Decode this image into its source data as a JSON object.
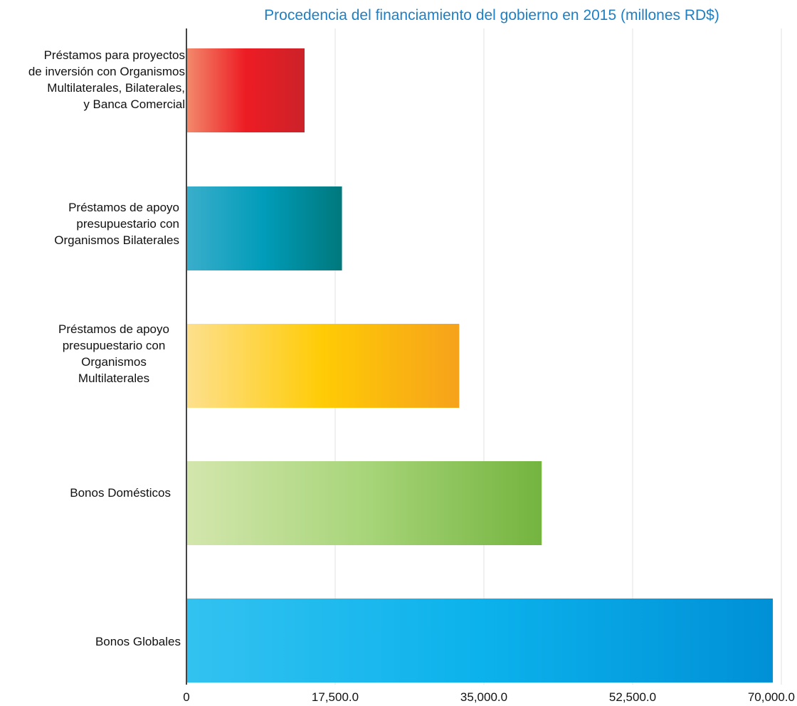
{
  "chart_data": {
    "type": "bar",
    "orientation": "horizontal",
    "title": "Procedencia del financiamiento del gobierno en 2015 (millones RD$)",
    "categories": [
      "Préstamos para proyectos\nde inversión con Organismos\nMultilaterales, Bilaterales,\ny Banca Comercial",
      "Préstamos de apoyo\npresupuestario con\nOrganismos Bilaterales",
      "Préstamos de apoyo\npresupuestario con\nOrganismos\nMultilaterales",
      "Bonos Domésticos",
      "Bonos Globales"
    ],
    "values": [
      13900,
      18300,
      32100,
      41800,
      69000
    ],
    "xlim": [
      0,
      70000
    ],
    "xticks": [
      0,
      17500,
      35000,
      52500,
      70000
    ],
    "xtick_labels": [
      "0",
      "17,500.0",
      "35,000.0",
      "52,500.0",
      "70,000.0"
    ],
    "grid": true,
    "colors": [
      [
        "#f28a6c",
        "#ed1c24",
        "#cc2229"
      ],
      [
        "#3aaecb",
        "#009cb9",
        "#00787c"
      ],
      [
        "#fde08e",
        "#ffcb05",
        "#f6a21b"
      ],
      [
        "#d3e6ad",
        "#a8d57a",
        "#74b43f"
      ],
      [
        "#33c2f0",
        "#0cb2ec",
        "#0090d6"
      ]
    ]
  }
}
